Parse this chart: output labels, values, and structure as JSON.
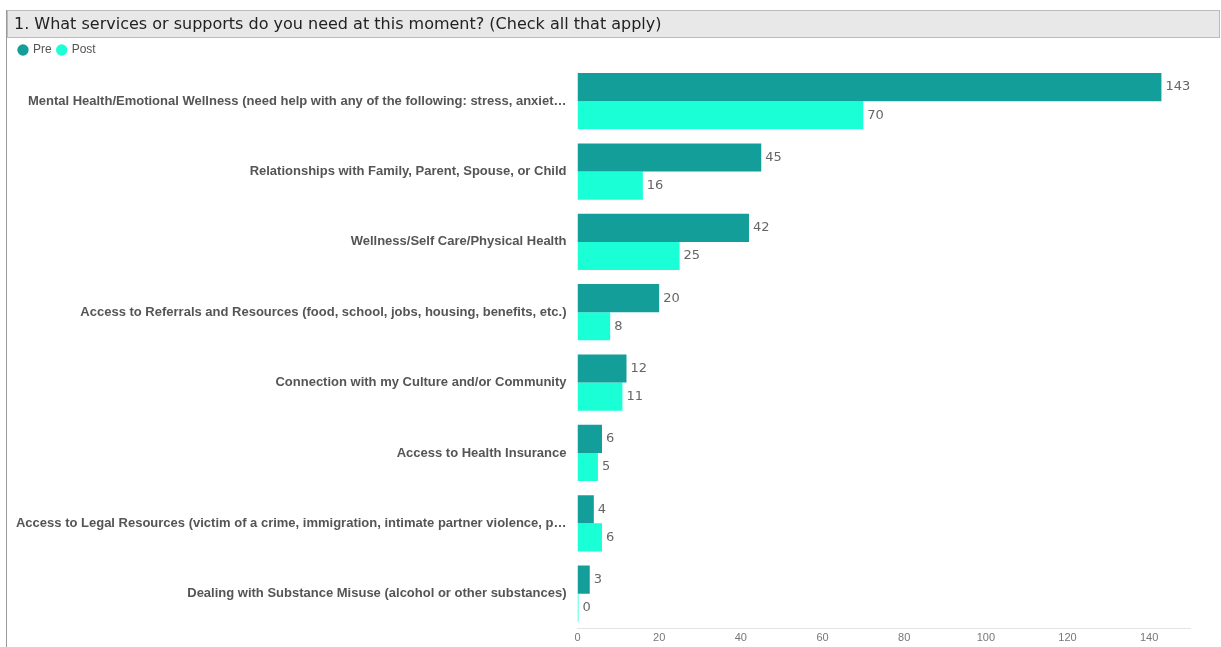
{
  "chart_data": {
    "type": "bar",
    "orientation": "horizontal",
    "title": "1. What services or supports do you need at this moment? (Check all that apply)",
    "categories": [
      "Mental Health/Emotional Wellness (need help with any of the following: stress, anxiet…",
      "Relationships with Family, Parent, Spouse, or Child",
      "Wellness/Self Care/Physical Health",
      "Access to Referrals and Resources (food, school, jobs, housing, benefits, etc.)",
      "Connection with my Culture and/or Community",
      "Access to Health Insurance",
      "Access to Legal Resources (victim of a crime, immigration, intimate partner violence, p…",
      "Dealing with Substance Misuse (alcohol or other substances)"
    ],
    "series": [
      {
        "name": "Pre",
        "color": "#139e9a",
        "values": [
          143,
          45,
          42,
          20,
          12,
          6,
          4,
          3
        ]
      },
      {
        "name": "Post",
        "color": "#1affd5",
        "values": [
          70,
          16,
          25,
          8,
          11,
          5,
          6,
          0
        ]
      }
    ],
    "xlim": [
      0,
      150
    ],
    "xticks": [
      0,
      20,
      40,
      60,
      80,
      100,
      120,
      140
    ],
    "data_labels": true,
    "legend": "top left"
  }
}
